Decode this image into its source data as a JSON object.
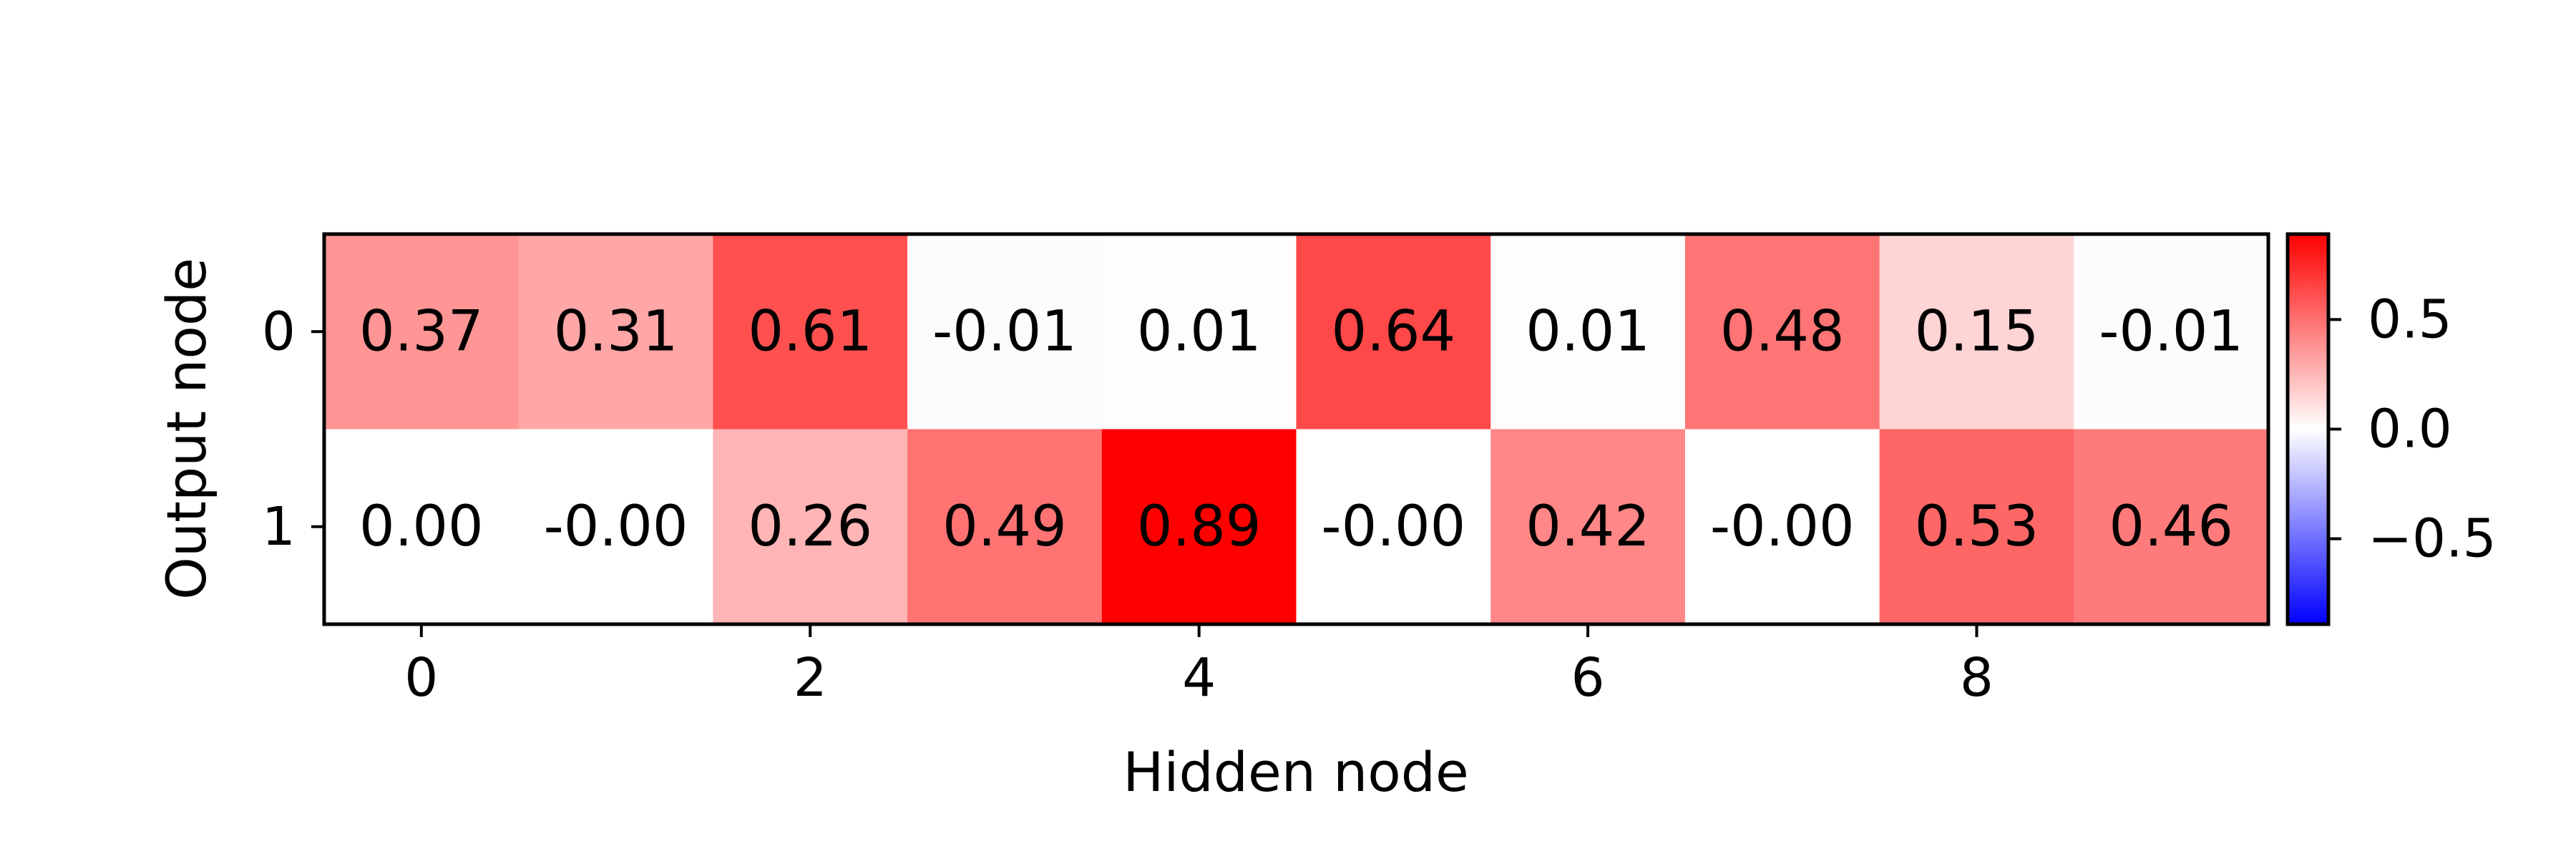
{
  "chart_data": {
    "type": "heatmap",
    "xlabel": "Hidden node",
    "ylabel": "Output node",
    "x_ticks": [
      "0",
      "2",
      "4",
      "6",
      "8"
    ],
    "x_tick_values": [
      0,
      2,
      4,
      6,
      8
    ],
    "y_ticks": [
      "0",
      "1"
    ],
    "y_tick_values": [
      0,
      1
    ],
    "columns": [
      0,
      1,
      2,
      3,
      4,
      5,
      6,
      7,
      8,
      9
    ],
    "rows": [
      0,
      1
    ],
    "values": [
      [
        0.37,
        0.31,
        0.61,
        -0.01,
        0.01,
        0.64,
        0.01,
        0.48,
        0.15,
        -0.01
      ],
      [
        0.0,
        -0.0,
        0.26,
        0.49,
        0.89,
        -0.0,
        0.42,
        -0.0,
        0.53,
        0.46
      ]
    ],
    "cell_labels": [
      [
        "0.37",
        "0.31",
        "0.61",
        "-0.01",
        "0.01",
        "0.64",
        "0.01",
        "0.48",
        "0.15",
        "-0.01"
      ],
      [
        "0.00",
        "-0.00",
        "0.26",
        "0.49",
        "0.89",
        "-0.00",
        "0.42",
        "-0.00",
        "0.53",
        "0.46"
      ]
    ],
    "colormap": "bwr",
    "colors": {
      "low": "#0000ff",
      "mid": "#ffffff",
      "high": "#ff0000"
    },
    "color_range": [
      -0.89,
      0.89
    ],
    "colorbar": {
      "placement": "right",
      "ticks": [
        0.5,
        0.0,
        -0.5
      ],
      "tick_labels": [
        "0.5",
        "0.0",
        "−0.5"
      ]
    },
    "grid": false
  }
}
